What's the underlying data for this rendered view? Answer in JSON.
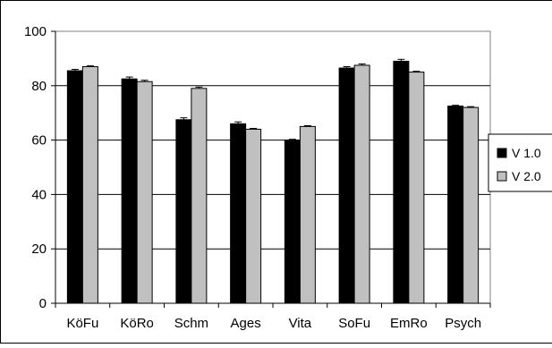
{
  "chart_data": {
    "type": "bar",
    "title": "",
    "xlabel": "",
    "ylabel": "",
    "categories": [
      "KöFu",
      "KöRo",
      "Schm",
      "Ages",
      "Vita",
      "SoFu",
      "EmRo",
      "Psych"
    ],
    "series": [
      {
        "name": "V 1.0",
        "color": "#000000",
        "values": [
          85.5,
          82.5,
          67.5,
          66,
          60,
          86.5,
          89,
          72.5
        ],
        "errors": [
          0.5,
          0.7,
          0.7,
          0.7,
          0.3,
          0.5,
          0.7,
          0.3
        ]
      },
      {
        "name": "V 2.0",
        "color": "#c0c0c0",
        "values": [
          87,
          81.5,
          79,
          64,
          65,
          87.5,
          85,
          72
        ],
        "errors": [
          0.3,
          0.5,
          0.5,
          0.3,
          0.3,
          0.5,
          0.3,
          0.3
        ]
      }
    ],
    "ylim": [
      0,
      100
    ],
    "yticks": [
      0,
      20,
      40,
      60,
      80,
      100
    ],
    "grid": true,
    "legend": "right"
  }
}
